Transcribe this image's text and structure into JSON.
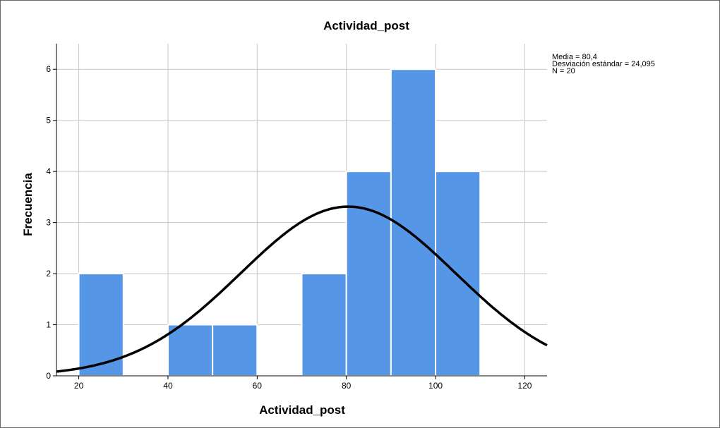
{
  "chart_data": {
    "type": "bar",
    "subtype": "histogram-with-normal-curve",
    "title": "Actividad_post",
    "xlabel": "Actividad_post",
    "ylabel": "Frecuencia",
    "xlim": [
      15,
      125
    ],
    "ylim": [
      0,
      6.5
    ],
    "x_ticks": [
      20,
      40,
      60,
      80,
      100,
      120
    ],
    "y_ticks": [
      0,
      1,
      2,
      3,
      4,
      5,
      6
    ],
    "grid": true,
    "bin_width": 10,
    "bins": [
      {
        "start": 20,
        "end": 30,
        "count": 2
      },
      {
        "start": 30,
        "end": 40,
        "count": 0
      },
      {
        "start": 40,
        "end": 50,
        "count": 1
      },
      {
        "start": 50,
        "end": 60,
        "count": 1
      },
      {
        "start": 60,
        "end": 70,
        "count": 0
      },
      {
        "start": 70,
        "end": 80,
        "count": 2
      },
      {
        "start": 80,
        "end": 90,
        "count": 4
      },
      {
        "start": 90,
        "end": 100,
        "count": 6
      },
      {
        "start": 100,
        "end": 110,
        "count": 4
      }
    ],
    "normal_curve": {
      "mean": 80.4,
      "sd": 24.095,
      "n": 20
    },
    "stats_lines": [
      "Media = 80,4",
      "Desviación estándar = 24,095",
      "N = 20"
    ],
    "legend_position": "top-right",
    "colors": {
      "bar": "#5596e6",
      "curve": "#000000",
      "grid": "#c8c8c8"
    }
  }
}
